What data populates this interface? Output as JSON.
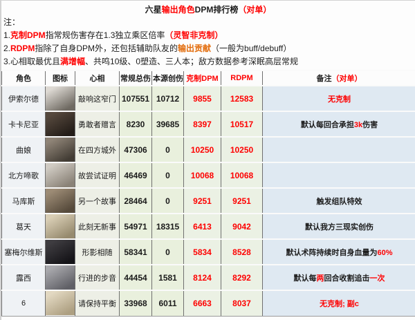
{
  "page": {
    "title_segments": [
      {
        "t": "六星",
        "c": "black"
      },
      {
        "t": "输出角色",
        "c": "red"
      },
      {
        "t": "DPM排行榜",
        "c": "black"
      },
      {
        "t": "（对单）",
        "c": "red"
      }
    ],
    "notes_label": "注：",
    "notes": [
      {
        "segments": [
          {
            "t": "1.",
            "c": "black"
          },
          {
            "t": "克制DPM",
            "c": "red"
          },
          {
            "t": "指常规伤害存在1.3独立乘区倍率",
            "c": "black"
          },
          {
            "t": "（灵智非克制）",
            "c": "red"
          }
        ]
      },
      {
        "segments": [
          {
            "t": "2.",
            "c": "black"
          },
          {
            "t": "RDPM",
            "c": "red"
          },
          {
            "t": "指除了自身DPM外，还包括辅助队友的",
            "c": "black"
          },
          {
            "t": "输出贡献",
            "c": "orange"
          },
          {
            "t": "（一般为buff/debuff）",
            "c": "black"
          }
        ]
      },
      {
        "segments": [
          {
            "t": "3.心相取最优且",
            "c": "black"
          },
          {
            "t": "满增幅",
            "c": "red"
          },
          {
            "t": "、共鸣10级、0塑造、三人本；敌方数据参考深眠高层常规",
            "c": "black"
          }
        ]
      }
    ]
  },
  "colors": {
    "red_text": "#fe0000",
    "orange_text": "#e26b0a",
    "remark_cell_bg": "#dfe9f2",
    "number_cell_bg": "#e9f0dd",
    "name_cell_bg": "#eff2f5"
  },
  "table": {
    "headers": [
      {
        "segments": [
          {
            "t": "角色",
            "c": "black"
          }
        ]
      },
      {
        "segments": [
          {
            "t": "图标",
            "c": "black"
          }
        ]
      },
      {
        "segments": [
          {
            "t": "心相",
            "c": "black"
          }
        ]
      },
      {
        "segments": [
          {
            "t": "常规总伤",
            "c": "black"
          }
        ]
      },
      {
        "segments": [
          {
            "t": "本源创伤",
            "c": "black"
          }
        ]
      },
      {
        "segments": [
          {
            "t": "克制DPM",
            "c": "red"
          }
        ]
      },
      {
        "segments": [
          {
            "t": "RDPM",
            "c": "red"
          }
        ]
      },
      {
        "segments": [
          {
            "t": "备注",
            "c": "black"
          },
          {
            "t": "（对单）",
            "c": "red"
          }
        ]
      }
    ],
    "rows": [
      {
        "name": "伊索尔德",
        "psychube": "敲响这窄门",
        "normal": "107551",
        "source": "10712",
        "counter": "9855",
        "rdpm": "12583",
        "remark": [
          {
            "t": "无克制",
            "c": "red"
          }
        ],
        "portrait": {
          "c1": "#ddd9d3",
          "c2": "#6f6a62"
        }
      },
      {
        "name": "卡卡尼亚",
        "psychube": "勇敢者赠言",
        "normal": "8230",
        "source": "39685",
        "counter": "8397",
        "rdpm": "10517",
        "remark": [
          {
            "t": "默认每回合承担",
            "c": "black"
          },
          {
            "t": "3k",
            "c": "red"
          },
          {
            "t": "伤害",
            "c": "black"
          }
        ],
        "portrait": {
          "c1": "#55483d",
          "c2": "#241d18"
        }
      },
      {
        "name": "曲娘",
        "psychube": "在四方城外",
        "normal": "47306",
        "source": "0",
        "counter": "10250",
        "rdpm": "10250",
        "remark": [],
        "portrait": {
          "c1": "#8f8477",
          "c2": "#423c34"
        }
      },
      {
        "name": "北方啼歌",
        "psychube": "故尝试证明",
        "normal": "46469",
        "source": "0",
        "counter": "10068",
        "rdpm": "10068",
        "remark": [],
        "portrait": {
          "c1": "#d0cbc3",
          "c2": "#8a8277"
        }
      },
      {
        "name": "马库斯",
        "psychube": "另一个故事",
        "normal": "28464",
        "source": "0",
        "counter": "9251",
        "rdpm": "9251",
        "remark": [
          {
            "t": "触发组队特效",
            "c": "black"
          }
        ],
        "portrait": {
          "c1": "#9c8b75",
          "c2": "#564a3b"
        }
      },
      {
        "name": "葛天",
        "psychube": "此刻无新事",
        "normal": "54971",
        "source": "18315",
        "counter": "6413",
        "rdpm": "9042",
        "remark": [
          {
            "t": "默认我方三现实创伤",
            "c": "black"
          }
        ],
        "portrait": {
          "c1": "#d9ceb5",
          "c2": "#968a6e"
        }
      },
      {
        "name": "塞梅尔维斯",
        "psychube": "形影相随",
        "normal": "58341",
        "source": "0",
        "counter": "5834",
        "rdpm": "8528",
        "remark": [
          {
            "t": "默认术阵持续时自身血量为",
            "c": "black"
          },
          {
            "t": "60%",
            "c": "red"
          }
        ],
        "portrait": {
          "c1": "#3e3c40",
          "c2": "#151418"
        }
      },
      {
        "name": "露西",
        "psychube": "行进的步音",
        "normal": "44454",
        "source": "1581",
        "counter": "8124",
        "rdpm": "8292",
        "remark": [
          {
            "t": "默认每",
            "c": "black"
          },
          {
            "t": "两",
            "c": "red"
          },
          {
            "t": "回合收割追击",
            "c": "black"
          },
          {
            "t": "一次",
            "c": "red"
          }
        ],
        "portrait": {
          "c1": "#a8a8ac",
          "c2": "#606066"
        }
      },
      {
        "name": "6",
        "psychube": "请保持平衡",
        "normal": "33968",
        "source": "6011",
        "counter": "6663",
        "rdpm": "8037",
        "remark": [
          {
            "t": "无克制; 副c",
            "c": "red"
          }
        ],
        "portrait": {
          "c1": "#e2d8c1",
          "c2": "#ad9f81"
        }
      }
    ]
  },
  "chart_data": {
    "type": "table",
    "title": "六星输出角色DPM排行榜（对单）",
    "notes": [
      "1.克制DPM指常规伤害存在1.3独立乘区倍率（灵智非克制）",
      "2.RDPM指除了自身DPM外，还包括辅助队友的输出贡献（一般为buff/debuff）",
      "3.心相取最优且满增幅、共鸣10级、0塑造、三人本；敌方数据参考深眠高层常规"
    ],
    "columns": [
      "角色",
      "图标",
      "心相",
      "常规总伤",
      "本源创伤",
      "克制DPM",
      "RDPM",
      "备注（对单）"
    ],
    "rows": [
      [
        "伊索尔德",
        "portrait",
        "敲响这窄门",
        107551,
        10712,
        9855,
        12583,
        "无克制"
      ],
      [
        "卡卡尼亚",
        "portrait",
        "勇敢者赠言",
        8230,
        39685,
        8397,
        10517,
        "默认每回合承担3k伤害"
      ],
      [
        "曲娘",
        "portrait",
        "在四方城外",
        47306,
        0,
        10250,
        10250,
        ""
      ],
      [
        "北方啼歌",
        "portrait",
        "故尝试证明",
        46469,
        0,
        10068,
        10068,
        ""
      ],
      [
        "马库斯",
        "portrait",
        "另一个故事",
        28464,
        0,
        9251,
        9251,
        "触发组队特效"
      ],
      [
        "葛天",
        "portrait",
        "此刻无新事",
        54971,
        18315,
        6413,
        9042,
        "默认我方三现实创伤"
      ],
      [
        "塞梅尔维斯",
        "portrait",
        "形影相随",
        58341,
        0,
        5834,
        8528,
        "默认术阵持续时自身血量为60%"
      ],
      [
        "露西",
        "portrait",
        "行进的步音",
        44454,
        1581,
        8124,
        8292,
        "默认每两回合收割追击一次"
      ],
      [
        "6",
        "portrait",
        "请保持平衡",
        33968,
        6011,
        6663,
        8037,
        "无克制; 副c"
      ]
    ]
  }
}
